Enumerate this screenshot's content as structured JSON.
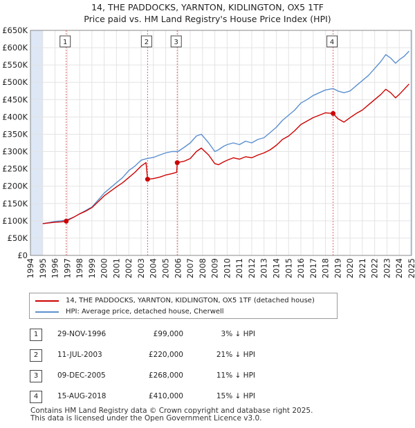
{
  "title_line1": "14, THE PADDOCKS, YARNTON, KIDLINGTON, OX5 1TF",
  "title_line2": "Price paid vs. HM Land Registry's House Price Index (HPI)",
  "legend": {
    "property": "14, THE PADDOCKS, YARNTON, KIDLINGTON, OX5 1TF (detached house)",
    "hpi": "HPI: Average price, detached house, Cherwell"
  },
  "colors": {
    "property": "#cc0000",
    "hpi": "#5b8fd0",
    "marker_line": "#e06060",
    "shade": "#dde7f5"
  },
  "transactions": [
    {
      "num": "1",
      "date": "29-NOV-1996",
      "price": "£99,000",
      "hpi_diff": "3% ↓ HPI"
    },
    {
      "num": "2",
      "date": "11-JUL-2003",
      "price": "£220,000",
      "hpi_diff": "21% ↓ HPI"
    },
    {
      "num": "3",
      "date": "09-DEC-2005",
      "price": "£268,000",
      "hpi_diff": "11% ↓ HPI"
    },
    {
      "num": "4",
      "date": "15-AUG-2018",
      "price": "£410,000",
      "hpi_diff": "15% ↓ HPI"
    }
  ],
  "footer_line1": "Contains HM Land Registry data © Crown copyright and database right 2025.",
  "footer_line2": "This data is licensed under the Open Government Licence v3.0.",
  "chart_data": {
    "type": "line",
    "x_ticks": [
      1994,
      1995,
      1996,
      1997,
      1998,
      1999,
      2000,
      2001,
      2002,
      2003,
      2004,
      2005,
      2006,
      2007,
      2008,
      2009,
      2010,
      2011,
      2012,
      2013,
      2014,
      2015,
      2016,
      2017,
      2018,
      2019,
      2020,
      2021,
      2022,
      2023,
      2024,
      2025
    ],
    "y_ticks": [
      0,
      50000,
      100000,
      150000,
      200000,
      250000,
      300000,
      350000,
      400000,
      450000,
      500000,
      550000,
      600000,
      650000
    ],
    "y_tick_labels": [
      "£0",
      "£50K",
      "£100K",
      "£150K",
      "£200K",
      "£250K",
      "£300K",
      "£350K",
      "£400K",
      "£450K",
      "£500K",
      "£550K",
      "£600K",
      "£650K"
    ],
    "xlim": [
      1994,
      2025
    ],
    "ylim": [
      0,
      650000
    ],
    "shaded_ranges": [
      [
        1994,
        1995.0
      ],
      [
        2024.9,
        2025
      ]
    ],
    "sale_markers": [
      {
        "label": "1",
        "x": 1996.91,
        "y": 99000
      },
      {
        "label": "2",
        "x": 2003.53,
        "y": 220000
      },
      {
        "label": "3",
        "x": 2005.94,
        "y": 268000
      },
      {
        "label": "4",
        "x": 2018.62,
        "y": 410000
      }
    ],
    "series": [
      {
        "name": "HPI: Average price, detached house, Cherwell",
        "x": [
          1995.0,
          1995.5,
          1996.0,
          1996.5,
          1996.91,
          1997.5,
          1998.0,
          1998.5,
          1999.0,
          1999.5,
          2000.0,
          2000.5,
          2001.0,
          2001.5,
          2002.0,
          2002.5,
          2003.0,
          2003.5,
          2004.0,
          2004.5,
          2005.0,
          2005.5,
          2006.0,
          2006.5,
          2007.0,
          2007.5,
          2007.9,
          2008.5,
          2009.0,
          2009.3,
          2009.7,
          2010.0,
          2010.5,
          2011.0,
          2011.5,
          2012.0,
          2012.5,
          2013.0,
          2013.5,
          2014.0,
          2014.5,
          2015.0,
          2015.5,
          2016.0,
          2016.5,
          2017.0,
          2017.5,
          2018.0,
          2018.62,
          2019.0,
          2019.5,
          2020.0,
          2020.5,
          2021.0,
          2021.5,
          2022.0,
          2022.5,
          2022.9,
          2023.3,
          2023.7,
          2024.0,
          2024.4,
          2024.8
        ],
        "y": [
          92000,
          95000,
          98000,
          100000,
          102000,
          110000,
          120000,
          130000,
          140000,
          160000,
          180000,
          195000,
          210000,
          225000,
          245000,
          258000,
          275000,
          280000,
          283000,
          290000,
          296000,
          300000,
          300000,
          312000,
          325000,
          345000,
          350000,
          325000,
          300000,
          305000,
          315000,
          320000,
          325000,
          320000,
          330000,
          325000,
          335000,
          340000,
          355000,
          370000,
          390000,
          405000,
          420000,
          440000,
          450000,
          462000,
          470000,
          478000,
          482000,
          475000,
          470000,
          475000,
          490000,
          505000,
          520000,
          540000,
          560000,
          580000,
          570000,
          555000,
          565000,
          575000,
          590000
        ]
      },
      {
        "name": "14, THE PADDOCKS, YARNTON, KIDLINGTON, OX5 1TF (detached house)",
        "x": [
          1995.0,
          1995.5,
          1996.0,
          1996.5,
          1996.91,
          1997.5,
          1998.0,
          1998.5,
          1999.0,
          1999.5,
          2000.0,
          2000.5,
          2001.0,
          2001.5,
          2002.0,
          2002.5,
          2003.0,
          2003.4,
          2003.53,
          2004.0,
          2004.5,
          2005.0,
          2005.5,
          2005.9,
          2005.94,
          2006.5,
          2007.0,
          2007.5,
          2007.9,
          2008.5,
          2009.0,
          2009.3,
          2009.7,
          2010.0,
          2010.5,
          2011.0,
          2011.5,
          2012.0,
          2012.5,
          2013.0,
          2013.5,
          2014.0,
          2014.5,
          2015.0,
          2015.5,
          2016.0,
          2016.5,
          2017.0,
          2017.5,
          2018.0,
          2018.62,
          2019.0,
          2019.5,
          2020.0,
          2020.5,
          2021.0,
          2021.5,
          2022.0,
          2022.5,
          2022.9,
          2023.3,
          2023.7,
          2024.0,
          2024.4,
          2024.8
        ],
        "y": [
          92000,
          94000,
          96000,
          97000,
          99000,
          110000,
          120000,
          128000,
          138000,
          155000,
          172000,
          185000,
          198000,
          210000,
          225000,
          240000,
          258000,
          268000,
          220000,
          222000,
          226000,
          232000,
          236000,
          240000,
          268000,
          272000,
          280000,
          300000,
          310000,
          290000,
          265000,
          262000,
          270000,
          275000,
          282000,
          278000,
          285000,
          282000,
          290000,
          296000,
          305000,
          318000,
          335000,
          345000,
          360000,
          378000,
          388000,
          398000,
          405000,
          412000,
          410000,
          395000,
          385000,
          398000,
          410000,
          420000,
          435000,
          450000,
          465000,
          480000,
          470000,
          455000,
          465000,
          480000,
          495000
        ]
      }
    ]
  }
}
